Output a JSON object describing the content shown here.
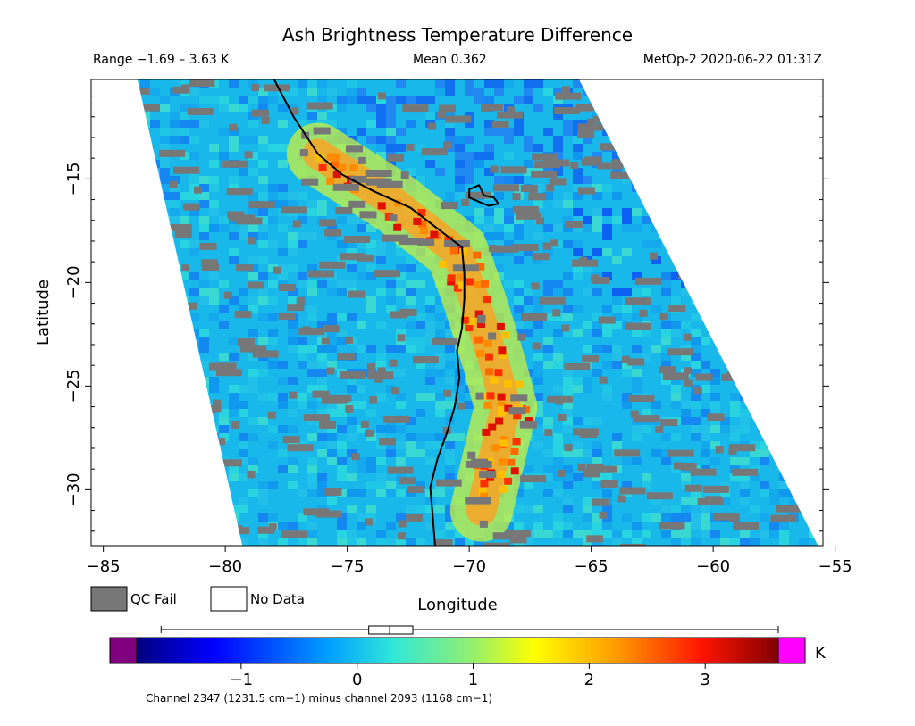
{
  "chart_data": {
    "type": "heatmap",
    "title": "Ash Brightness Temperature Difference",
    "header": {
      "range": "Range −1.69 – 3.63 K",
      "mean": "Mean 0.362",
      "satellite_time": "MetOp-2 2020-06-22 01:31Z"
    },
    "xlabel": "Longitude",
    "ylabel": "Latitude",
    "xlim": [
      -85.5,
      -55.5
    ],
    "ylim": [
      -32.7,
      -10.2
    ],
    "xticks": [
      -85,
      -80,
      -75,
      -70,
      -65,
      -60,
      -55
    ],
    "xtick_labels": [
      "−85",
      "−80",
      "−75",
      "−70",
      "−65",
      "−60",
      "−55"
    ],
    "yticks": [
      -15,
      -20,
      -25,
      -30
    ],
    "ytick_labels": [
      "−15",
      "−20",
      "−25",
      "−30"
    ],
    "swath_corners": [
      [
        -83.6,
        -10.2
      ],
      [
        -65.5,
        -10.2
      ],
      [
        -55.7,
        -32.7
      ],
      [
        -79.3,
        -32.7
      ]
    ],
    "ash_plume": [
      [
        -76.2,
        -13.8
      ],
      [
        -73.0,
        -16.2
      ],
      [
        -70.5,
        -18.5
      ],
      [
        -69.8,
        -20.8
      ],
      [
        -69.0,
        -23.8
      ],
      [
        -68.5,
        -26.0
      ],
      [
        -69.0,
        -28.5
      ],
      [
        -69.5,
        -31.0
      ]
    ],
    "coastline": [
      [
        -78.0,
        -10.2
      ],
      [
        -77.2,
        -12.0
      ],
      [
        -76.2,
        -13.8
      ],
      [
        -75.2,
        -14.8
      ],
      [
        -73.9,
        -15.6
      ],
      [
        -72.4,
        -16.4
      ],
      [
        -71.3,
        -17.4
      ],
      [
        -70.3,
        -18.3
      ],
      [
        -70.2,
        -19.6
      ],
      [
        -70.2,
        -20.8
      ],
      [
        -70.3,
        -22.2
      ],
      [
        -70.5,
        -23.3
      ],
      [
        -70.4,
        -24.6
      ],
      [
        -70.6,
        -26.0
      ],
      [
        -70.9,
        -27.2
      ],
      [
        -71.3,
        -28.5
      ],
      [
        -71.6,
        -29.9
      ],
      [
        -71.5,
        -31.2
      ],
      [
        -71.4,
        -32.7
      ]
    ],
    "lake": [
      [
        -70.0,
        -15.5
      ],
      [
        -69.6,
        -15.3
      ],
      [
        -69.4,
        -15.8
      ],
      [
        -69.0,
        -15.9
      ],
      [
        -68.8,
        -16.2
      ],
      [
        -69.2,
        -16.3
      ],
      [
        -69.6,
        -16.1
      ],
      [
        -70.0,
        -15.9
      ]
    ],
    "legend": [
      {
        "label": "QC Fail",
        "color": "#777777"
      },
      {
        "label": "No Data",
        "color": "#ffffff"
      }
    ],
    "colorbar": {
      "min": -1.9,
      "max": 3.63,
      "ticks": [
        -1,
        0,
        1,
        2,
        3
      ],
      "tick_labels": [
        "−1",
        "0",
        "1",
        "2",
        "3"
      ],
      "unit": "K",
      "underflow_color": "#800080",
      "overflow_color": "#ff00ff",
      "box_min": -1.69,
      "box_q1": 0.1,
      "box_median": 0.28,
      "box_q3": 0.48,
      "box_max": 3.63
    },
    "footnote": "Channel 2347 (1231.5 cm−1) minus channel 2093 (1168 cm−1)"
  },
  "colors": {
    "qc_fail": "#777777",
    "coastline": "#000000",
    "background": "#ffffff"
  }
}
